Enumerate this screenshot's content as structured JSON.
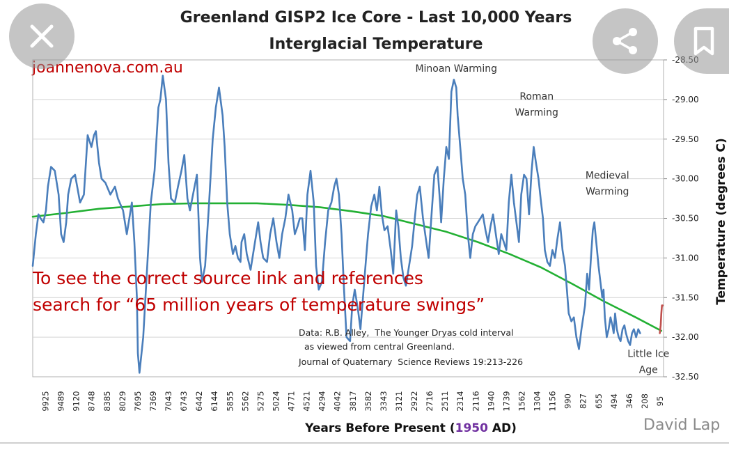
{
  "overlay": {
    "close_icon": "close-icon",
    "share_icon": "share-icon",
    "bookmark_icon": "bookmark-icon",
    "watermark": "David Lap"
  },
  "colors": {
    "temperature_line": "#4a7ebb",
    "trend_line": "#22b033",
    "recent_line": "#c0504d",
    "red_text": "#c00000",
    "present_year": "#7030a0"
  },
  "chart_data": {
    "type": "line",
    "title": "Greenland GISP2 Ice Core - Last 10,000 Years",
    "subtitle": "Interglacial Temperature",
    "site_label": "joannenova.com.au",
    "xlabel_prefix": "Years Before Present (",
    "xlabel_year": "1950",
    "xlabel_suffix": " AD)",
    "ylabel": "Temperature (degrees C)",
    "ylim": [
      -32.5,
      -28.5
    ],
    "x_axis_reversed": true,
    "x_tick_labels": [
      "9925",
      "9489",
      "9120",
      "8748",
      "8385",
      "8029",
      "7695",
      "7369",
      "7043",
      "6743",
      "6442",
      "6144",
      "5855",
      "5562",
      "5275",
      "5024",
      "4771",
      "4521",
      "4294",
      "4042",
      "3817",
      "3582",
      "3343",
      "3121",
      "2922",
      "2716",
      "2511",
      "2314",
      "2116",
      "1940",
      "1739",
      "1562",
      "1304",
      "1156",
      "990",
      "827",
      "655",
      "494",
      "346",
      "208",
      "95"
    ],
    "y_tick_labels": [
      "-28.50",
      "-29.00",
      "-29.50",
      "-30.00",
      "-30.50",
      "-31.00",
      "-31.50",
      "-32.00",
      "-32.50"
    ],
    "annotations": [
      {
        "text": "Minoan Warming",
        "lines": [
          "Minoan Warming"
        ],
        "x_years_bp": 3343,
        "y": -28.65
      },
      {
        "text": "Roman Warming",
        "lines": [
          "Roman",
          "Warming"
        ],
        "x_years_bp": 2070,
        "y": -29.0
      },
      {
        "text": "Medieval Warming",
        "lines": [
          "Medieval",
          "Warming"
        ],
        "x_years_bp": 950,
        "y": -30.0
      },
      {
        "text": "Little Ice Age",
        "lines": [
          "Little Ice",
          "Age"
        ],
        "x_years_bp": 300,
        "y": -32.25
      }
    ],
    "source_text": [
      "Data: R.B. Alley,  The Younger Dryas cold interval",
      "  as viewed from central Greenland.",
      "Journal of Quaternary  Science Reviews 19:213-226"
    ],
    "notice_text": [
      "To see the correct source link and references",
      "search for “65 million years of temperature swings”"
    ],
    "series": [
      {
        "name": "GISP2 temperature",
        "x_years_bp": [
          10050,
          10000,
          9960,
          9925,
          9880,
          9840,
          9810,
          9760,
          9700,
          9640,
          9600,
          9560,
          9520,
          9489,
          9440,
          9380,
          9300,
          9240,
          9180,
          9120,
          9080,
          9050,
          9000,
          8960,
          8900,
          8820,
          8748,
          8700,
          8620,
          8560,
          8480,
          8440,
          8400,
          8385,
          8360,
          8300,
          8230,
          8180,
          8120,
          8060,
          8029,
          7990,
          7940,
          7900,
          7860,
          7800,
          7750,
          7695,
          7650,
          7600,
          7560,
          7500,
          7450,
          7400,
          7369,
          7320,
          7260,
          7200,
          7150,
          7100,
          7043,
          7010,
          6970,
          6930,
          6880,
          6840,
          6800,
          6760,
          6743,
          6700,
          6660,
          6600,
          6540,
          6480,
          6442,
          6400,
          6340,
          6290,
          6240,
          6190,
          6144,
          6100,
          6050,
          6000,
          5940,
          5900,
          5855,
          5820,
          5780,
          5740,
          5700,
          5650,
          5600,
          5562,
          5520,
          5470,
          5420,
          5370,
          5320,
          5275,
          5240,
          5200,
          5160,
          5120,
          5080,
          5024,
          4990,
          4950,
          4900,
          4860,
          4820,
          4771,
          4740,
          4690,
          4640,
          4600,
          4560,
          4521,
          4480,
          4430,
          4380,
          4340,
          4294,
          4260,
          4220,
          4180,
          4140,
          4080,
          4042,
          4000,
          3960,
          3920,
          3870,
          3817,
          3780,
          3730,
          3690,
          3640,
          3600,
          3582,
          3540,
          3500,
          3460,
          3420,
          3380,
          3343,
          3320,
          3280,
          3240,
          3200,
          3160,
          3121,
          3080,
          3040,
          3000,
          2960,
          2922,
          2880,
          2840,
          2800,
          2760,
          2716,
          2670,
          2630,
          2590,
          2550,
          2511,
          2470,
          2430,
          2390,
          2350,
          2314,
          2270,
          2230,
          2190,
          2150,
          2116,
          2080,
          2040,
          2000,
          1970,
          1940,
          1900,
          1860,
          1820,
          1780,
          1739,
          1700,
          1660,
          1620,
          1590,
          1562,
          1520,
          1480,
          1440,
          1400,
          1360,
          1304,
          1270,
          1240,
          1210,
          1180,
          1156,
          1120,
          1090,
          1060,
          1030,
          1010,
          990,
          960,
          930,
          900,
          870,
          850,
          827,
          800,
          770,
          740,
          710,
          680,
          655,
          620,
          590,
          560,
          530,
          494,
          460,
          430,
          400,
          370,
          346,
          320,
          290,
          260,
          230,
          208,
          180,
          150,
          120
        ],
        "y": [
          -31.1,
          -30.7,
          -30.45,
          -30.5,
          -30.55,
          -30.4,
          -30.1,
          -29.85,
          -29.9,
          -30.2,
          -30.7,
          -30.8,
          -30.55,
          -30.2,
          -30.0,
          -29.95,
          -30.3,
          -30.2,
          -29.45,
          -29.6,
          -29.45,
          -29.4,
          -29.8,
          -30.0,
          -30.05,
          -30.2,
          -30.1,
          -30.25,
          -30.4,
          -30.7,
          -30.3,
          -30.8,
          -31.5,
          -32.2,
          -32.45,
          -32.0,
          -31.0,
          -30.3,
          -29.9,
          -29.1,
          -29.0,
          -28.7,
          -29.0,
          -29.8,
          -30.25,
          -30.3,
          -30.1,
          -29.9,
          -29.7,
          -30.25,
          -30.4,
          -30.15,
          -29.95,
          -31.0,
          -31.3,
          -31.1,
          -30.35,
          -29.5,
          -29.1,
          -28.85,
          -29.2,
          -29.6,
          -30.3,
          -30.7,
          -30.95,
          -30.85,
          -31.0,
          -31.05,
          -30.8,
          -30.7,
          -30.95,
          -31.15,
          -30.85,
          -30.55,
          -30.8,
          -31.0,
          -31.05,
          -30.7,
          -30.5,
          -30.8,
          -31.0,
          -30.7,
          -30.5,
          -30.2,
          -30.4,
          -30.7,
          -30.6,
          -30.5,
          -30.5,
          -30.9,
          -30.2,
          -29.9,
          -30.3,
          -31.1,
          -31.4,
          -31.3,
          -30.8,
          -30.4,
          -30.3,
          -30.1,
          -30.0,
          -30.2,
          -30.7,
          -31.4,
          -32.0,
          -32.05,
          -31.6,
          -31.4,
          -31.65,
          -31.9,
          -31.5,
          -31.0,
          -30.7,
          -30.35,
          -30.2,
          -30.4,
          -30.1,
          -30.45,
          -30.65,
          -30.6,
          -30.9,
          -31.2,
          -30.4,
          -30.6,
          -31.0,
          -31.25,
          -31.35,
          -31.05,
          -30.85,
          -30.5,
          -30.2,
          -30.1,
          -30.5,
          -30.8,
          -31.0,
          -30.4,
          -29.95,
          -29.85,
          -30.3,
          -30.55,
          -30.0,
          -29.6,
          -29.75,
          -28.9,
          -28.75,
          -28.85,
          -29.2,
          -29.6,
          -30.0,
          -30.2,
          -30.7,
          -31.0,
          -30.7,
          -30.6,
          -30.55,
          -30.5,
          -30.45,
          -30.65,
          -30.8,
          -30.6,
          -30.45,
          -30.7,
          -30.95,
          -30.7,
          -30.8,
          -30.9,
          -30.3,
          -29.95,
          -30.3,
          -30.55,
          -30.8,
          -30.2,
          -29.95,
          -30.0,
          -30.45,
          -29.9,
          -29.6,
          -29.8,
          -30.0,
          -30.3,
          -30.5,
          -30.9,
          -31.05,
          -31.1,
          -30.9,
          -31.0,
          -30.75,
          -30.55,
          -30.9,
          -31.1,
          -31.4,
          -31.7,
          -31.8,
          -31.75,
          -32.0,
          -32.15,
          -31.9,
          -31.6,
          -31.2,
          -31.4,
          -31.0,
          -30.65,
          -30.55,
          -30.85,
          -31.1,
          -31.3,
          -31.5,
          -31.4,
          -31.75,
          -32.0,
          -31.9,
          -31.75,
          -31.85,
          -31.95,
          -31.7,
          -31.9,
          -32.0,
          -32.05,
          -31.9,
          -31.85,
          -31.95,
          -32.05,
          -32.1,
          -31.95,
          -31.9,
          -32.0,
          -31.9,
          -31.95
        ]
      },
      {
        "name": "Recent",
        "x_years_bp": [
          120,
          105,
          95,
          85,
          72
        ],
        "y": [
          -31.95,
          -31.85,
          -31.7,
          -31.6,
          -31.6
        ]
      },
      {
        "name": "Trend",
        "x_years_bp": [
          10050,
          9500,
          9000,
          8500,
          8000,
          7500,
          7000,
          6500,
          6000,
          5500,
          5000,
          4500,
          4000,
          3500,
          3000,
          2500,
          2000,
          1500,
          1000,
          500,
          95
        ],
        "y": [
          -30.48,
          -30.43,
          -30.38,
          -30.35,
          -30.32,
          -30.31,
          -30.31,
          -30.31,
          -30.33,
          -30.36,
          -30.41,
          -30.47,
          -30.57,
          -30.67,
          -30.8,
          -30.95,
          -31.12,
          -31.33,
          -31.55,
          -31.75,
          -31.92
        ]
      }
    ]
  }
}
